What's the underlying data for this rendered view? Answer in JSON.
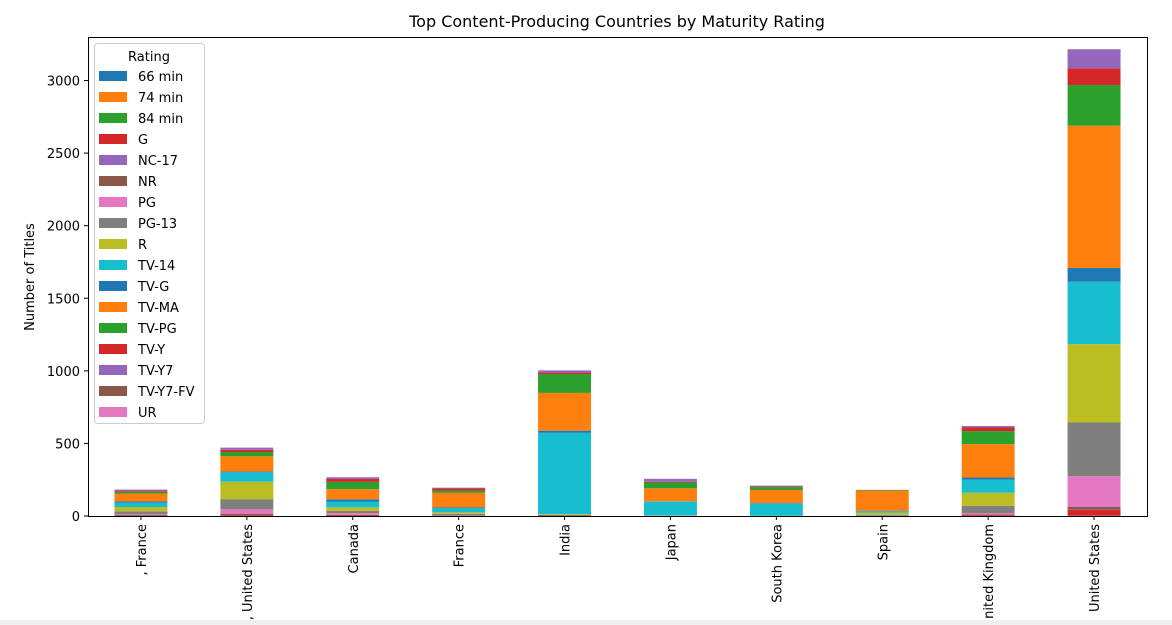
{
  "chart_data": {
    "type": "bar",
    "stacked": true,
    "title": "Top Content-Producing Countries by Maturity Rating",
    "xlabel": "",
    "ylabel": "Number of Titles",
    "ylim": [
      0,
      3300
    ],
    "yticks": [
      0,
      500,
      1000,
      1500,
      2000,
      2500,
      3000
    ],
    "grid": false,
    "legend_title": "Rating",
    "legend_position": "upper-left",
    "categories": [
      ", France",
      ", United States",
      "Canada",
      "France",
      "India",
      "Japan",
      "South Korea",
      "Spain",
      "United Kingdom",
      "United States"
    ],
    "series": [
      {
        "name": "66 min",
        "color": "#1f77b4",
        "values": [
          0,
          0,
          0,
          0,
          0,
          0,
          0,
          0,
          0,
          0
        ]
      },
      {
        "name": "74 min",
        "color": "#ff7f0e",
        "values": [
          0,
          0,
          0,
          0,
          0,
          0,
          0,
          0,
          0,
          1
        ]
      },
      {
        "name": "84 min",
        "color": "#2ca02c",
        "values": [
          0,
          0,
          0,
          0,
          0,
          0,
          0,
          0,
          0,
          1
        ]
      },
      {
        "name": "G",
        "color": "#d62728",
        "values": [
          2,
          5,
          3,
          1,
          0,
          0,
          0,
          0,
          5,
          40
        ]
      },
      {
        "name": "NC-17",
        "color": "#9467bd",
        "values": [
          0,
          1,
          0,
          0,
          0,
          0,
          0,
          0,
          0,
          2
        ]
      },
      {
        "name": "NR",
        "color": "#8c564b",
        "values": [
          5,
          10,
          5,
          3,
          5,
          0,
          0,
          1,
          5,
          20
        ]
      },
      {
        "name": "PG",
        "color": "#e377c2",
        "values": [
          5,
          30,
          12,
          3,
          0,
          1,
          0,
          2,
          10,
          210
        ]
      },
      {
        "name": "PG-13",
        "color": "#7f7f7f",
        "values": [
          20,
          70,
          15,
          8,
          3,
          1,
          0,
          5,
          50,
          370
        ]
      },
      {
        "name": "R",
        "color": "#bcbd22",
        "values": [
          30,
          120,
          25,
          10,
          5,
          2,
          2,
          15,
          90,
          540
        ]
      },
      {
        "name": "TV-14",
        "color": "#17becf",
        "values": [
          30,
          65,
          40,
          30,
          560,
          95,
          85,
          10,
          90,
          430
        ]
      },
      {
        "name": "TV-G",
        "color": "#1f77b4",
        "values": [
          8,
          5,
          15,
          5,
          15,
          2,
          2,
          2,
          15,
          95
        ]
      },
      {
        "name": "TV-MA",
        "color": "#ff7f0e",
        "values": [
          55,
          105,
          70,
          100,
          260,
          90,
          90,
          140,
          230,
          980
        ]
      },
      {
        "name": "TV-PG",
        "color": "#2ca02c",
        "values": [
          12,
          30,
          50,
          15,
          130,
          40,
          20,
          5,
          90,
          280
        ]
      },
      {
        "name": "TV-Y",
        "color": "#d62728",
        "values": [
          5,
          15,
          20,
          15,
          10,
          5,
          5,
          0,
          25,
          115
        ]
      },
      {
        "name": "TV-Y7",
        "color": "#9467bd",
        "values": [
          10,
          15,
          12,
          5,
          15,
          20,
          5,
          0,
          10,
          130
        ]
      },
      {
        "name": "TV-Y7-FV",
        "color": "#8c564b",
        "values": [
          0,
          0,
          0,
          0,
          0,
          0,
          0,
          0,
          0,
          1
        ]
      },
      {
        "name": "UR",
        "color": "#e377c2",
        "values": [
          0,
          0,
          0,
          0,
          0,
          0,
          0,
          0,
          0,
          1
        ]
      }
    ]
  }
}
